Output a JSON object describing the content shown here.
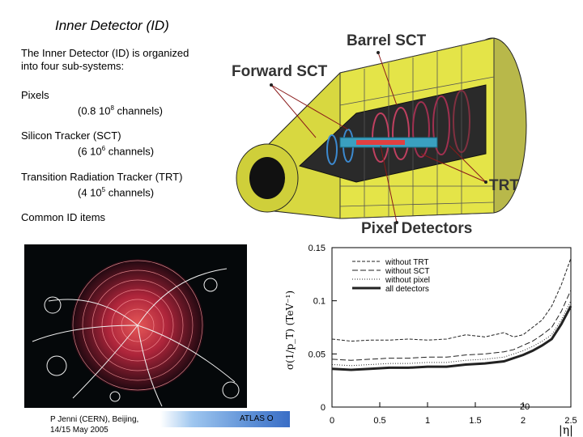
{
  "title": "Inner Detector (ID)",
  "intro": [
    "The Inner Detector (ID) is organized",
    "into four sub-systems:"
  ],
  "subsystems": [
    {
      "name": "Pixels",
      "detail": "(0.8 10",
      "exp": "8",
      "tail": " channels)"
    },
    {
      "name": "Silicon Tracker (SCT)",
      "detail": "(6 10",
      "exp": "6",
      "tail": " channels)"
    },
    {
      "name": "Transition Radiation Tracker (TRT)",
      "detail": "(4 10",
      "exp": "5",
      "tail": " channels)"
    }
  ],
  "common": "Common ID items",
  "detector_labels": {
    "barrel_sct": "Barrel SCT",
    "forward_sct": "Forward SCT",
    "trt": "TRT",
    "pixel": "Pixel Detectors"
  },
  "footer": {
    "author_line1": "P Jenni (CERN), Beijing,",
    "author_line2": "14/15 May 2005",
    "conference": "ATLAS O",
    "page": "20"
  },
  "chart_data": {
    "type": "line",
    "xlabel": "|η|",
    "ylabel": "σ(1/p_T) (TeV⁻¹)",
    "xlim": [
      0,
      2.5
    ],
    "ylim": [
      0,
      0.15
    ],
    "xticks": [
      "0",
      "0.5",
      "1",
      "1.5",
      "2",
      "2.5"
    ],
    "yticks": [
      "0",
      "0.05",
      "0.1",
      "0.15"
    ],
    "series": [
      {
        "name": "without TRT",
        "x": [
          0,
          0.2,
          0.4,
          0.6,
          0.8,
          1.0,
          1.2,
          1.4,
          1.6,
          1.8,
          1.9,
          2.0,
          2.1,
          2.2,
          2.3,
          2.4,
          2.5
        ],
        "values": [
          0.064,
          0.062,
          0.063,
          0.063,
          0.064,
          0.063,
          0.064,
          0.068,
          0.066,
          0.07,
          0.066,
          0.068,
          0.075,
          0.082,
          0.095,
          0.115,
          0.14
        ]
      },
      {
        "name": "without SCT",
        "x": [
          0,
          0.2,
          0.4,
          0.6,
          0.8,
          1.0,
          1.2,
          1.4,
          1.6,
          1.8,
          1.9,
          2.0,
          2.1,
          2.2,
          2.3,
          2.4,
          2.5
        ],
        "values": [
          0.045,
          0.044,
          0.045,
          0.046,
          0.046,
          0.047,
          0.047,
          0.049,
          0.05,
          0.052,
          0.054,
          0.058,
          0.062,
          0.068,
          0.075,
          0.09,
          0.11
        ]
      },
      {
        "name": "without pixel",
        "x": [
          0,
          0.2,
          0.4,
          0.6,
          0.8,
          1.0,
          1.2,
          1.4,
          1.6,
          1.8,
          1.9,
          2.0,
          2.1,
          2.2,
          2.3,
          2.4,
          2.5
        ],
        "values": [
          0.04,
          0.039,
          0.04,
          0.041,
          0.041,
          0.042,
          0.042,
          0.044,
          0.045,
          0.047,
          0.05,
          0.053,
          0.057,
          0.062,
          0.068,
          0.082,
          0.1
        ]
      },
      {
        "name": "all detectors",
        "x": [
          0,
          0.2,
          0.4,
          0.6,
          0.8,
          1.0,
          1.2,
          1.4,
          1.6,
          1.8,
          1.9,
          2.0,
          2.1,
          2.2,
          2.3,
          2.4,
          2.5
        ],
        "values": [
          0.036,
          0.035,
          0.036,
          0.037,
          0.037,
          0.038,
          0.038,
          0.04,
          0.041,
          0.043,
          0.046,
          0.049,
          0.053,
          0.058,
          0.064,
          0.078,
          0.095
        ]
      }
    ]
  }
}
